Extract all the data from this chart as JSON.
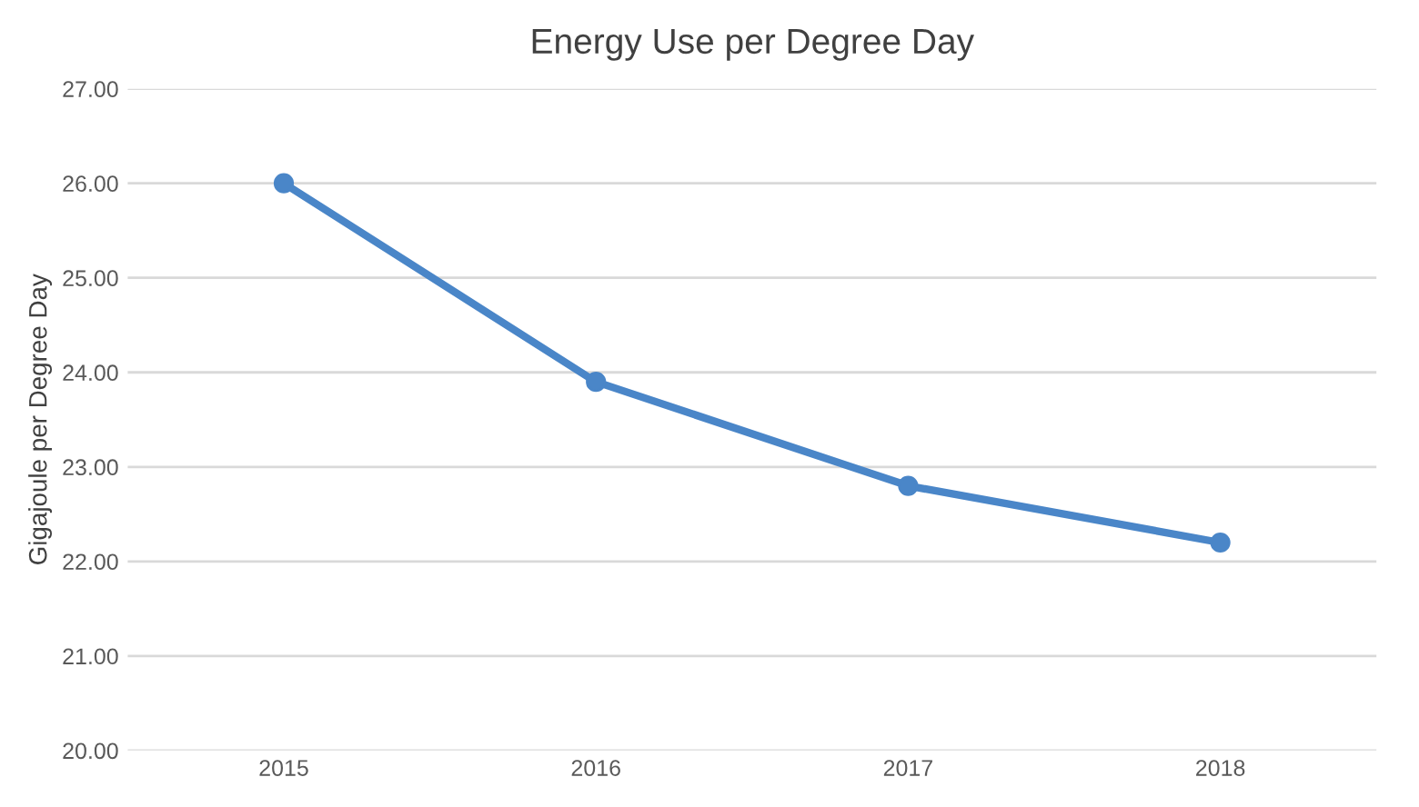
{
  "chart_data": {
    "type": "line",
    "title": "Energy Use per Degree Day",
    "ylabel": "Gigajoule per Degree Day",
    "categories": [
      "2015",
      "2016",
      "2017",
      "2018"
    ],
    "series": [
      {
        "color": "#4a86c8",
        "values": [
          26.0,
          23.9,
          22.8,
          22.2
        ]
      }
    ],
    "ylim": [
      20,
      27
    ],
    "yticks": [
      {
        "value": 20,
        "label": "20.00"
      },
      {
        "value": 21,
        "label": "21.00"
      },
      {
        "value": 22,
        "label": "22.00"
      },
      {
        "value": 23,
        "label": "23.00"
      },
      {
        "value": 24,
        "label": "24.00"
      },
      {
        "value": 25,
        "label": "25.00"
      },
      {
        "value": 26,
        "label": "26.00"
      },
      {
        "value": 27,
        "label": "27.00"
      }
    ],
    "grid": "y",
    "marker": "circle",
    "line_style": "solid"
  }
}
